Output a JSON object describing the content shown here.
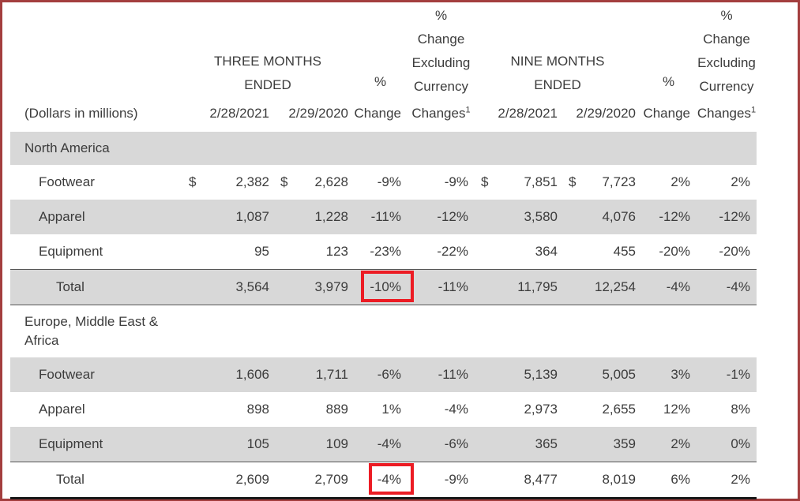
{
  "colors": {
    "frame_border": "#a33e3e",
    "row_shade": "#d8d8d8",
    "annotation_red": "#ec1c24",
    "table_bottom_rule": "#161616",
    "text": "#3c3c3c"
  },
  "header": {
    "dollars_label": "(Dollars in millions)",
    "three_months": [
      "THREE MONTHS",
      "ENDED"
    ],
    "nine_months": [
      "NINE MONTHS",
      "ENDED"
    ],
    "pct_top": "%",
    "pct_bottom": "Change",
    "excl_top_lines": [
      "%",
      "Change",
      "Excluding",
      "Currency"
    ],
    "excl_bottom": "Changes",
    "excl_superscript": "1",
    "dates": [
      "2/28/2021",
      "2/29/2020",
      "2/28/2021",
      "2/29/2020"
    ]
  },
  "table": {
    "dollar_sign": "$",
    "rows": [
      {
        "type": "section",
        "label": "North America",
        "shaded": true
      },
      {
        "type": "data",
        "label": "Footwear",
        "shaded": false,
        "dollar": true,
        "values": [
          "2,382",
          "2,628",
          "-9%",
          "-9%",
          "7,851",
          "7,723",
          "2%",
          "2%"
        ]
      },
      {
        "type": "data",
        "label": "Apparel",
        "shaded": true,
        "values": [
          "1,087",
          "1,228",
          "-11%",
          "-12%",
          "3,580",
          "4,076",
          "-12%",
          "-12%"
        ]
      },
      {
        "type": "data",
        "label": "Equipment",
        "shaded": false,
        "values": [
          "95",
          "123",
          "-23%",
          "-22%",
          "364",
          "455",
          "-20%",
          "-20%"
        ]
      },
      {
        "type": "total",
        "label": "Total",
        "shaded": true,
        "highlight_index": 2,
        "values": [
          "3,564",
          "3,979",
          "-10%",
          "-11%",
          "11,795",
          "12,254",
          "-4%",
          "-4%"
        ]
      },
      {
        "type": "section",
        "label": "Europe, Middle East &\nAfrica",
        "shaded": false
      },
      {
        "type": "data",
        "label": "Footwear",
        "shaded": true,
        "values": [
          "1,606",
          "1,711",
          "-6%",
          "-11%",
          "5,139",
          "5,005",
          "3%",
          "-1%"
        ]
      },
      {
        "type": "data",
        "label": "Apparel",
        "shaded": false,
        "values": [
          "898",
          "889",
          "1%",
          "-4%",
          "2,973",
          "2,655",
          "12%",
          "8%"
        ]
      },
      {
        "type": "data",
        "label": "Equipment",
        "shaded": true,
        "values": [
          "105",
          "109",
          "-4%",
          "-6%",
          "365",
          "359",
          "2%",
          "0%"
        ]
      },
      {
        "type": "total",
        "label": "Total",
        "shaded": false,
        "highlight_index": 2,
        "values": [
          "2,609",
          "2,709",
          "-4%",
          "-9%",
          "8,477",
          "8,019",
          "6%",
          "2%"
        ]
      }
    ]
  }
}
